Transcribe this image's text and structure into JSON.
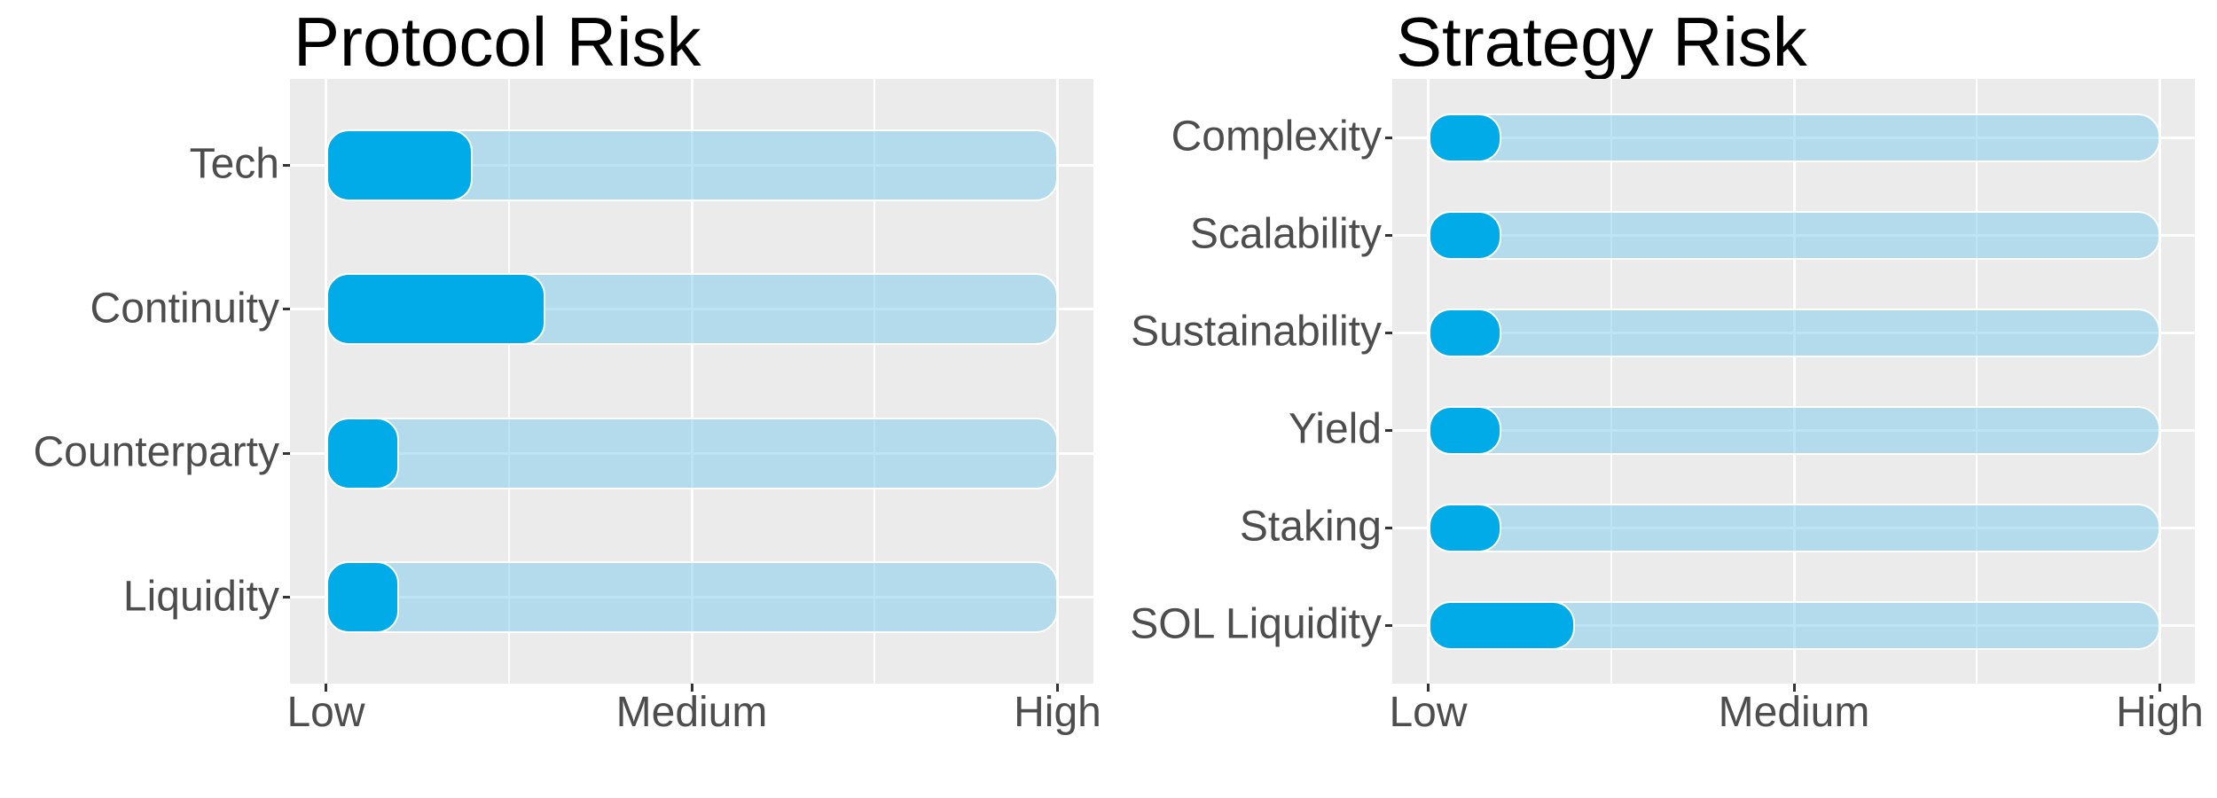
{
  "palette": {
    "page_background": "#ffffff",
    "panel_background": "#ebebeb",
    "gridline_color": "#ffffff",
    "value_bar_fill": "#00abe8",
    "track_bar_fill": "rgba(135,206,235,0.55)",
    "bar_outline": "#ffffff",
    "axis_tick_color": "#333333",
    "axis_label_color": "#4d4d4d",
    "title_color": "#000000"
  },
  "chart_data": [
    {
      "type": "bar",
      "orientation": "horizontal",
      "title": "Protocol Risk",
      "categories": [
        "Tech",
        "Continuity",
        "Counterparty",
        "Liquidity"
      ],
      "values": [
        1.4,
        1.6,
        1.2,
        1.2
      ],
      "value_axis": {
        "min": 1,
        "max": 3,
        "tick_values": [
          1,
          2,
          3
        ],
        "tick_labels": [
          "Low",
          "Medium",
          "High"
        ]
      },
      "track_full_range": true,
      "track_max_value": 3,
      "grid": true,
      "legend_position": "none",
      "xlabel": "",
      "ylabel": ""
    },
    {
      "type": "bar",
      "orientation": "horizontal",
      "title": "Strategy Risk",
      "categories": [
        "Complexity",
        "Scalability",
        "Sustainability",
        "Yield",
        "Staking",
        "SOL Liquidity"
      ],
      "values": [
        1.2,
        1.2,
        1.2,
        1.2,
        1.2,
        1.4
      ],
      "value_axis": {
        "min": 1,
        "max": 3,
        "tick_values": [
          1,
          2,
          3
        ],
        "tick_labels": [
          "Low",
          "Medium",
          "High"
        ]
      },
      "track_full_range": true,
      "track_max_value": 3,
      "grid": true,
      "legend_position": "none",
      "xlabel": "",
      "ylabel": ""
    }
  ]
}
